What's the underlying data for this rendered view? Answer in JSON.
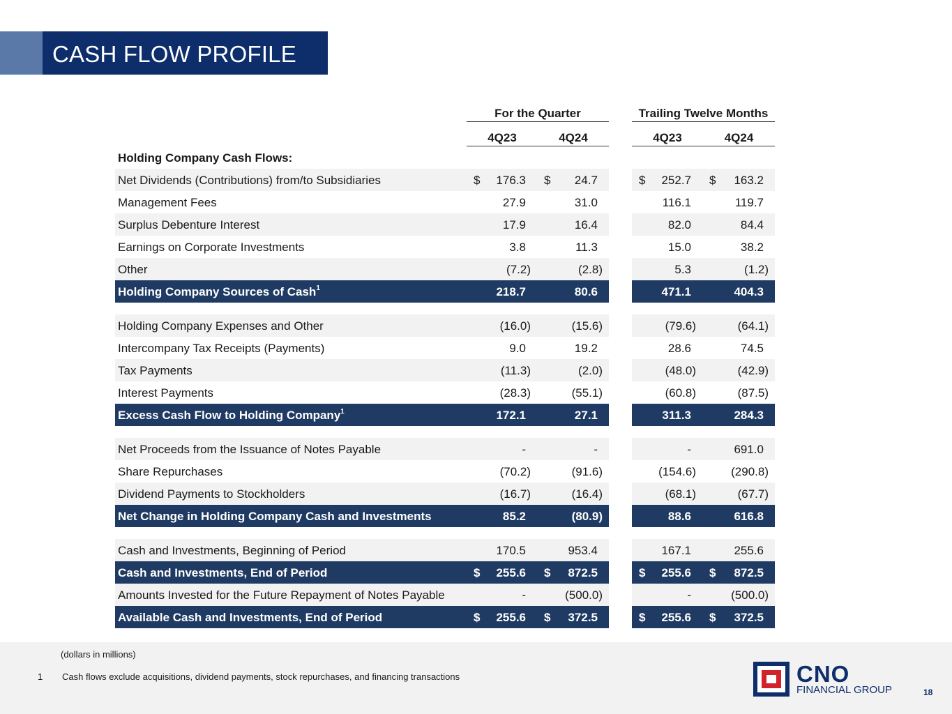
{
  "title": "CASH FLOW PROFILE",
  "headers": {
    "group1": "For the Quarter",
    "group2": "Trailing Twelve Months",
    "cols": [
      "4Q23",
      "4Q24",
      "4Q23",
      "4Q24"
    ]
  },
  "section_title": "Holding Company Cash Flows:",
  "rows": [
    {
      "label": "Net Dividends (Contributions) from/to Subsidiaries",
      "cur": [
        "$",
        "$",
        "$",
        "$"
      ],
      "values": [
        "176.3",
        "24.7",
        "252.7",
        "163.2"
      ]
    },
    {
      "label": "Management Fees",
      "values": [
        "27.9",
        "31.0",
        "116.1",
        "119.7"
      ]
    },
    {
      "label": "Surplus Debenture Interest",
      "values": [
        "17.9",
        "16.4",
        "82.0",
        "84.4"
      ]
    },
    {
      "label": "Earnings on Corporate Investments",
      "values": [
        "3.8",
        "11.3",
        "15.0",
        "38.2"
      ]
    },
    {
      "label": "Other",
      "values": [
        "(7.2)",
        "(2.8)",
        "5.3",
        "(1.2)"
      ]
    },
    {
      "label": "Holding Company Sources of Cash",
      "sup": "1",
      "values": [
        "218.7",
        "80.6",
        "471.1",
        "404.3"
      ]
    },
    {
      "label": "Holding Company Expenses and Other",
      "values": [
        "(16.0)",
        "(15.6)",
        "(79.6)",
        "(64.1)"
      ]
    },
    {
      "label": "Intercompany Tax Receipts (Payments)",
      "values": [
        "9.0",
        "19.2",
        "28.6",
        "74.5"
      ]
    },
    {
      "label": "Tax Payments",
      "values": [
        "(11.3)",
        "(2.0)",
        "(48.0)",
        "(42.9)"
      ]
    },
    {
      "label": "Interest Payments",
      "values": [
        "(28.3)",
        "(55.1)",
        "(60.8)",
        "(87.5)"
      ]
    },
    {
      "label": "Excess Cash Flow to Holding Company",
      "sup": "1",
      "values": [
        "172.1",
        "27.1",
        "311.3",
        "284.3"
      ]
    },
    {
      "label": "Net Proceeds from the Issuance of Notes Payable",
      "values": [
        "-",
        "-",
        "-",
        "691.0"
      ]
    },
    {
      "label": "Share Repurchases",
      "values": [
        "(70.2)",
        "(91.6)",
        "(154.6)",
        "(290.8)"
      ]
    },
    {
      "label": "Dividend Payments to Stockholders",
      "values": [
        "(16.7)",
        "(16.4)",
        "(68.1)",
        "(67.7)"
      ]
    },
    {
      "label": "Net Change in Holding Company Cash and Investments",
      "values": [
        "85.2",
        "(80.9)",
        "88.6",
        "616.8"
      ]
    },
    {
      "label": "Cash and Investments, Beginning of Period",
      "values": [
        "170.5",
        "953.4",
        "167.1",
        "255.6"
      ]
    },
    {
      "label": "Cash and Investments, End of Period",
      "cur": [
        "$",
        "$",
        "$",
        "$"
      ],
      "values": [
        "255.6",
        "872.5",
        "255.6",
        "872.5"
      ]
    },
    {
      "label": "Amounts Invested for the Future Repayment of Notes Payable",
      "values": [
        "-",
        "(500.0)",
        "-",
        "(500.0)"
      ]
    },
    {
      "label": "Available Cash and Investments, End of Period",
      "cur": [
        "$",
        "$",
        "$",
        "$"
      ],
      "values": [
        "255.6",
        "372.5",
        "255.6",
        "372.5"
      ]
    }
  ],
  "footer": {
    "units_note": "(dollars in millions)",
    "footnote_number": "1",
    "footnote_text": "Cash flows exclude acquisitions, dividend payments, stock repurchases, and financing transactions",
    "logo_big": "CNO",
    "logo_small": "FINANCIAL GROUP",
    "page_number": "18"
  }
}
